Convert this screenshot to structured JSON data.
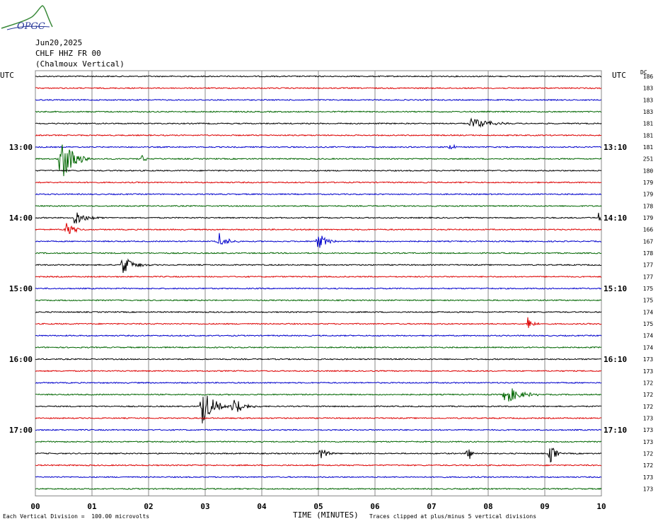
{
  "header": {
    "logo_text": "OPGC",
    "date": "Jun20,2025",
    "channel": "CHLF HHZ FR 00",
    "station_name": "(Chalmoux Vertical)"
  },
  "utc_left_label": "UTC",
  "utc_right_label": "UTC",
  "dc_label": "DC",
  "footer": {
    "scale_note": "Each Vertical Division =  100.00 microvolts",
    "xlabel": "TIME (MINUTES)",
    "clip_note": "Traces clipped at plus/minus 5 vertical divisions"
  },
  "colors": {
    "trace_cycle": [
      "#000000",
      "#dd0000",
      "#0000cc",
      "#006600"
    ],
    "grid": "#888888"
  },
  "chart_data": {
    "type": "line",
    "title": "",
    "xlabel": "TIME (MINUTES)",
    "ylabel": "",
    "xlim": [
      0,
      10
    ],
    "x_ticks": [
      "00",
      "01",
      "02",
      "03",
      "04",
      "05",
      "06",
      "07",
      "08",
      "09",
      "10"
    ],
    "grid": true,
    "left_hour_labels": [
      {
        "row": 6,
        "label": "13:00"
      },
      {
        "row": 12,
        "label": "14:00"
      },
      {
        "row": 18,
        "label": "15:00"
      },
      {
        "row": 24,
        "label": "16:00"
      },
      {
        "row": 30,
        "label": "17:00"
      }
    ],
    "right_hour_labels": [
      {
        "row": 6,
        "label": "13:10"
      },
      {
        "row": 12,
        "label": "14:10"
      },
      {
        "row": 18,
        "label": "15:10"
      },
      {
        "row": 24,
        "label": "16:10"
      },
      {
        "row": 30,
        "label": "17:10"
      }
    ],
    "dc_offsets": [
      186,
      183,
      183,
      183,
      181,
      181,
      181,
      251,
      180,
      179,
      179,
      178,
      179,
      166,
      167,
      178,
      177,
      177,
      175,
      175,
      174,
      175,
      174,
      174,
      173,
      173,
      172,
      172,
      172,
      173,
      173,
      173,
      172,
      172,
      173,
      173
    ],
    "events": [
      {
        "row": 4,
        "minute": 7.7,
        "amp": 0.6,
        "dur": 0.7
      },
      {
        "row": 6,
        "minute": 7.35,
        "amp": 0.4,
        "dur": 0.15
      },
      {
        "row": 7,
        "minute": 0.45,
        "amp": 2.4,
        "dur": 0.5
      },
      {
        "row": 7,
        "minute": 1.9,
        "amp": 0.5,
        "dur": 0.15
      },
      {
        "row": 12,
        "minute": 0.7,
        "amp": 0.7,
        "dur": 0.5
      },
      {
        "row": 12,
        "minute": 9.97,
        "amp": 0.8,
        "dur": 0.06
      },
      {
        "row": 13,
        "minute": 0.55,
        "amp": 0.6,
        "dur": 0.35
      },
      {
        "row": 14,
        "minute": 3.25,
        "amp": 0.7,
        "dur": 0.35
      },
      {
        "row": 14,
        "minute": 5.0,
        "amp": 0.7,
        "dur": 0.4
      },
      {
        "row": 16,
        "minute": 1.55,
        "amp": 0.8,
        "dur": 0.5
      },
      {
        "row": 21,
        "minute": 8.7,
        "amp": 0.8,
        "dur": 0.2
      },
      {
        "row": 27,
        "minute": 8.3,
        "amp": 0.9,
        "dur": 0.6
      },
      {
        "row": 28,
        "minute": 2.95,
        "amp": 1.6,
        "dur": 0.5
      },
      {
        "row": 28,
        "minute": 3.5,
        "amp": 0.8,
        "dur": 0.5
      },
      {
        "row": 32,
        "minute": 5.05,
        "amp": 0.7,
        "dur": 0.25
      },
      {
        "row": 32,
        "minute": 7.65,
        "amp": 0.8,
        "dur": 0.15
      },
      {
        "row": 32,
        "minute": 9.1,
        "amp": 0.8,
        "dur": 0.25
      }
    ]
  }
}
